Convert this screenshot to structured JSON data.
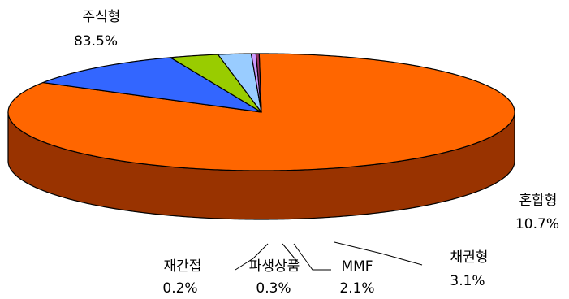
{
  "chart_data": {
    "type": "pie",
    "style": "3d",
    "title": "",
    "slices": [
      {
        "label": "주식형",
        "percent_label": "83.5%",
        "value": 83.5,
        "color": "#FF6600",
        "side_color": "#993300"
      },
      {
        "label": "혼합형",
        "percent_label": "10.7%",
        "value": 10.7,
        "color": "#3366FF",
        "side_color": "#1F3D99"
      },
      {
        "label": "채권형",
        "percent_label": "3.1%",
        "value": 3.1,
        "color": "#99CC00",
        "side_color": "#4F6B00"
      },
      {
        "label": "MMF",
        "percent_label": "2.1%",
        "value": 2.1,
        "color": "#99CCFF",
        "side_color": "#5A7390"
      },
      {
        "label": "파생상품",
        "percent_label": "0.3%",
        "value": 0.3,
        "color": "#CC99FF",
        "side_color": "#664D80"
      },
      {
        "label": "재간접",
        "percent_label": "0.2%",
        "value": 0.2,
        "color": "#993366",
        "side_color": "#4D1A33"
      }
    ]
  }
}
